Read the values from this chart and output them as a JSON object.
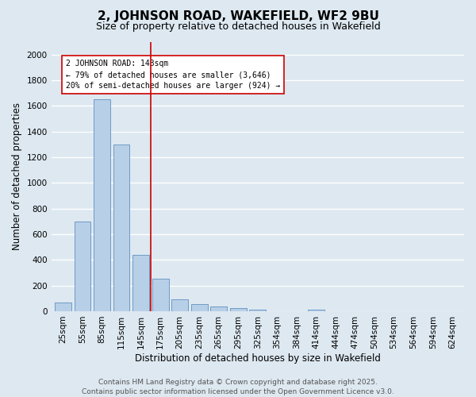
{
  "title1": "2, JOHNSON ROAD, WAKEFIELD, WF2 9BU",
  "title2": "Size of property relative to detached houses in Wakefield",
  "xlabel": "Distribution of detached houses by size in Wakefield",
  "ylabel": "Number of detached properties",
  "categories": [
    "25sqm",
    "55sqm",
    "85sqm",
    "115sqm",
    "145sqm",
    "175sqm",
    "205sqm",
    "235sqm",
    "265sqm",
    "295sqm",
    "325sqm",
    "354sqm",
    "384sqm",
    "414sqm",
    "444sqm",
    "474sqm",
    "504sqm",
    "534sqm",
    "564sqm",
    "594sqm",
    "624sqm"
  ],
  "values": [
    65,
    700,
    1650,
    1300,
    440,
    255,
    90,
    55,
    35,
    22,
    12,
    0,
    0,
    12,
    0,
    0,
    0,
    0,
    0,
    0,
    0
  ],
  "bar_color": "#b8cfe8",
  "bar_edge_color": "#6090c0",
  "bg_color": "#dde8f0",
  "grid_color": "#ffffff",
  "vline_x": 4.5,
  "vline_color": "#cc0000",
  "annotation_text": "2 JOHNSON ROAD: 143sqm\n← 79% of detached houses are smaller (3,646)\n20% of semi-detached houses are larger (924) →",
  "annotation_box_color": "#ffffff",
  "annotation_box_edge": "#cc0000",
  "ylim": [
    0,
    2100
  ],
  "yticks": [
    0,
    200,
    400,
    600,
    800,
    1000,
    1200,
    1400,
    1600,
    1800,
    2000
  ],
  "footer1": "Contains HM Land Registry data © Crown copyright and database right 2025.",
  "footer2": "Contains public sector information licensed under the Open Government Licence v3.0.",
  "title_fontsize": 11,
  "subtitle_fontsize": 9,
  "label_fontsize": 8.5,
  "tick_fontsize": 7.5,
  "annotation_fontsize": 7,
  "footer_fontsize": 6.5
}
